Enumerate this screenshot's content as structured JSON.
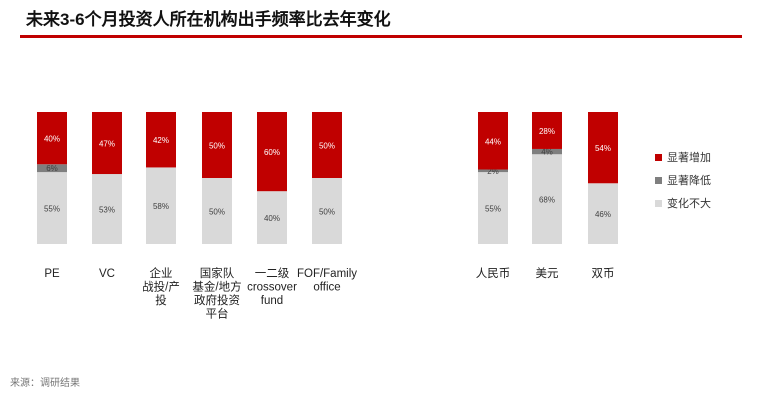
{
  "title": "未来3-6个月投资人所在机构出手频率比去年变化",
  "colors": {
    "accent_rule": "#c00000",
    "increase": "#c00000",
    "decrease": "#7f7f7f",
    "unchanged": "#d9d9d9",
    "label_light": "#ffffff",
    "label_dark": "#404040"
  },
  "chart_data": {
    "type": "bar",
    "stacked": true,
    "percent_stacked": true,
    "groups": [
      {
        "categories": [
          "PE",
          "VC",
          "企业\n战投/产\n投",
          "国家队\n基金/地方\n政府投资\n平台",
          "一二级\ncrossover\nfund",
          "FOF/Family\noffice"
        ],
        "series": [
          {
            "name": "显著增加",
            "values": [
              40,
              47,
              42,
              50,
              60,
              50
            ]
          },
          {
            "name": "显著降低",
            "values": [
              6,
              0,
              0,
              0,
              0,
              0
            ]
          },
          {
            "name": "变化不大",
            "values": [
              55,
              53,
              58,
              50,
              40,
              50
            ]
          }
        ]
      },
      {
        "categories": [
          "人民币",
          "美元",
          "双币"
        ],
        "series": [
          {
            "name": "显著增加",
            "values": [
              44,
              28,
              54
            ]
          },
          {
            "name": "显著降低",
            "values": [
              2,
              4,
              0
            ]
          },
          {
            "name": "变化不大",
            "values": [
              55,
              68,
              46
            ]
          }
        ]
      }
    ],
    "legend": {
      "position": "right",
      "entries": [
        "显著增加",
        "显著降低",
        "变化不大"
      ]
    },
    "grid": false,
    "ylim": [
      0,
      100
    ]
  },
  "source": "来源：调研结果"
}
